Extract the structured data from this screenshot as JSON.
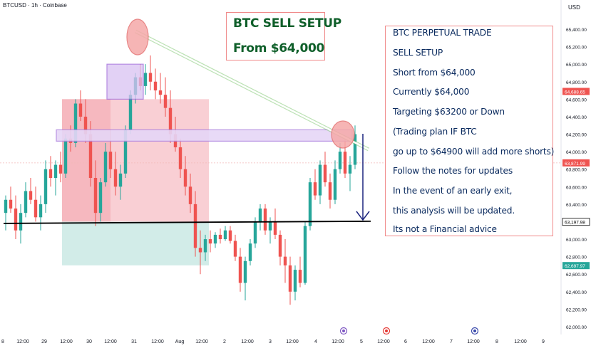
{
  "header": {
    "symbol": "BTCUSD · 1h · Coinbase",
    "currency": "USD"
  },
  "title_box": {
    "line1": "BTC SELL SETUP",
    "line2": "From $64,000"
  },
  "notes": [
    "BTC PERPETUAL TRADE",
    "SELL SETUP",
    "Short from $64,000",
    "Currently $64,000",
    "Targeting $63200 or Down",
    "(Trading plan IF BTC",
    "go up to $64900 will add more shorts)",
    "Follow the notes for updates",
    "In the event of an early exit,",
    "this analysis will be updated.",
    "Its not a Financial advice"
  ],
  "colors": {
    "up": "#26a69a",
    "down": "#ef5350",
    "red_zone": "#f8c7cc",
    "green_zone": "#cdeae5",
    "purple": "#b38ae0",
    "trend": "#8cd17d",
    "arrow": "#1a237e",
    "support": "#000000"
  },
  "chart_data": {
    "type": "candlestick",
    "timeframe": "1h",
    "ylim": [
      62000,
      65500
    ],
    "y_ticks": [
      "65,400.00",
      "65,200.00",
      "65,000.00",
      "64,800.00",
      "64,600.00",
      "64,400.00",
      "64,200.00",
      "64,000.00",
      "63,800.00",
      "63,600.00",
      "63,400.00",
      "63,200.00",
      "63,000.00",
      "62,800.00",
      "62,600.00",
      "62,400.00",
      "62,200.00",
      "62,000.00"
    ],
    "x_ticks": [
      "8",
      "12:00",
      "29",
      "12:00",
      "30",
      "12:00",
      "31",
      "12:00",
      "Aug",
      "12:00",
      "2",
      "12:00",
      "3",
      "12:00",
      "4",
      "12:00",
      "5",
      "12:00",
      "6",
      "12:00",
      "7",
      "12:00",
      "8",
      "12:00",
      "9"
    ],
    "price_labels": [
      {
        "value": 64688.65,
        "text": "64,688.65",
        "color": "#ef5350"
      },
      {
        "value": 63871.99,
        "text": "63,871.99",
        "color": "#ef5350"
      },
      {
        "value": 63197.98,
        "text": "63,197.98",
        "color": "#ffffff"
      },
      {
        "value": 62697.97,
        "text": "62,697.97",
        "color": "#26a69a"
      }
    ],
    "candles": [
      [
        63300,
        63500,
        63100,
        63450
      ],
      [
        63450,
        63600,
        63300,
        63350
      ],
      [
        63350,
        63500,
        63000,
        63100
      ],
      [
        63100,
        63400,
        62950,
        63300
      ],
      [
        63300,
        63650,
        63250,
        63550
      ],
      [
        63550,
        63700,
        63400,
        63450
      ],
      [
        63450,
        63600,
        63200,
        63250
      ],
      [
        63250,
        63500,
        63100,
        63400
      ],
      [
        63400,
        63900,
        63300,
        63800
      ],
      [
        63800,
        63950,
        63600,
        63700
      ],
      [
        63700,
        63900,
        63500,
        63850
      ],
      [
        63850,
        64000,
        63650,
        63750
      ],
      [
        63750,
        64200,
        63700,
        64150
      ],
      [
        64150,
        64300,
        64000,
        64100
      ],
      [
        64100,
        64600,
        64050,
        64550
      ],
      [
        64550,
        64700,
        64350,
        64400
      ],
      [
        64400,
        64600,
        64100,
        64200
      ],
      [
        64200,
        64350,
        63600,
        63700
      ],
      [
        63700,
        63900,
        63150,
        63300
      ],
      [
        63300,
        63700,
        63200,
        63650
      ],
      [
        63650,
        64100,
        63600,
        64000
      ],
      [
        64000,
        64250,
        63700,
        63800
      ],
      [
        63800,
        64000,
        63500,
        63600
      ],
      [
        63600,
        63850,
        63450,
        63750
      ],
      [
        63750,
        64300,
        63700,
        64250
      ],
      [
        64250,
        64700,
        64200,
        64650
      ],
      [
        64650,
        64900,
        64550,
        64850
      ],
      [
        64850,
        65000,
        64700,
        64750
      ],
      [
        64750,
        65000,
        64650,
        64900
      ],
      [
        64900,
        65100,
        64700,
        64800
      ],
      [
        64800,
        64950,
        64600,
        64700
      ],
      [
        64700,
        64900,
        64550,
        64650
      ],
      [
        64650,
        64850,
        64400,
        64500
      ],
      [
        64500,
        64700,
        64100,
        64200
      ],
      [
        64200,
        64400,
        64000,
        64050
      ],
      [
        64050,
        64150,
        63700,
        63800
      ],
      [
        63800,
        63950,
        63500,
        63600
      ],
      [
        63600,
        63750,
        63300,
        63400
      ],
      [
        63400,
        63550,
        62800,
        62900
      ],
      [
        62900,
        63100,
        62600,
        62850
      ],
      [
        62850,
        63050,
        62750,
        63000
      ],
      [
        63000,
        63100,
        62850,
        62950
      ],
      [
        62950,
        63080,
        62900,
        63050
      ],
      [
        63050,
        63120,
        62950,
        63000
      ],
      [
        63000,
        63150,
        62980,
        63100
      ],
      [
        63100,
        63150,
        62950,
        62980
      ],
      [
        62980,
        63050,
        62750,
        62800
      ],
      [
        62800,
        62900,
        62400,
        62500
      ],
      [
        62500,
        62800,
        62300,
        62750
      ],
      [
        62750,
        63000,
        62700,
        62950
      ],
      [
        62950,
        63250,
        62900,
        63200
      ],
      [
        63200,
        63400,
        63100,
        63350
      ],
      [
        63350,
        63400,
        63050,
        63100
      ],
      [
        63100,
        63250,
        62950,
        63200
      ],
      [
        63200,
        63350,
        63000,
        63050
      ],
      [
        63050,
        63100,
        62700,
        62800
      ],
      [
        62800,
        63000,
        62500,
        62700
      ],
      [
        62700,
        62800,
        62250,
        62400
      ],
      [
        62400,
        62700,
        62300,
        62650
      ],
      [
        62650,
        62800,
        62450,
        62500
      ],
      [
        62500,
        63200,
        62480,
        63150
      ],
      [
        63150,
        63700,
        63100,
        63650
      ],
      [
        63650,
        63800,
        63450,
        63500
      ],
      [
        63500,
        63900,
        63400,
        63850
      ],
      [
        63850,
        64000,
        63600,
        63650
      ],
      [
        63650,
        63750,
        63350,
        63450
      ],
      [
        63450,
        63900,
        63400,
        63800
      ],
      [
        63800,
        64100,
        63750,
        64000
      ],
      [
        64000,
        64150,
        63700,
        63750
      ],
      [
        63750,
        63950,
        63550,
        63850
      ],
      [
        63850,
        64300,
        63800,
        64200
      ]
    ]
  }
}
